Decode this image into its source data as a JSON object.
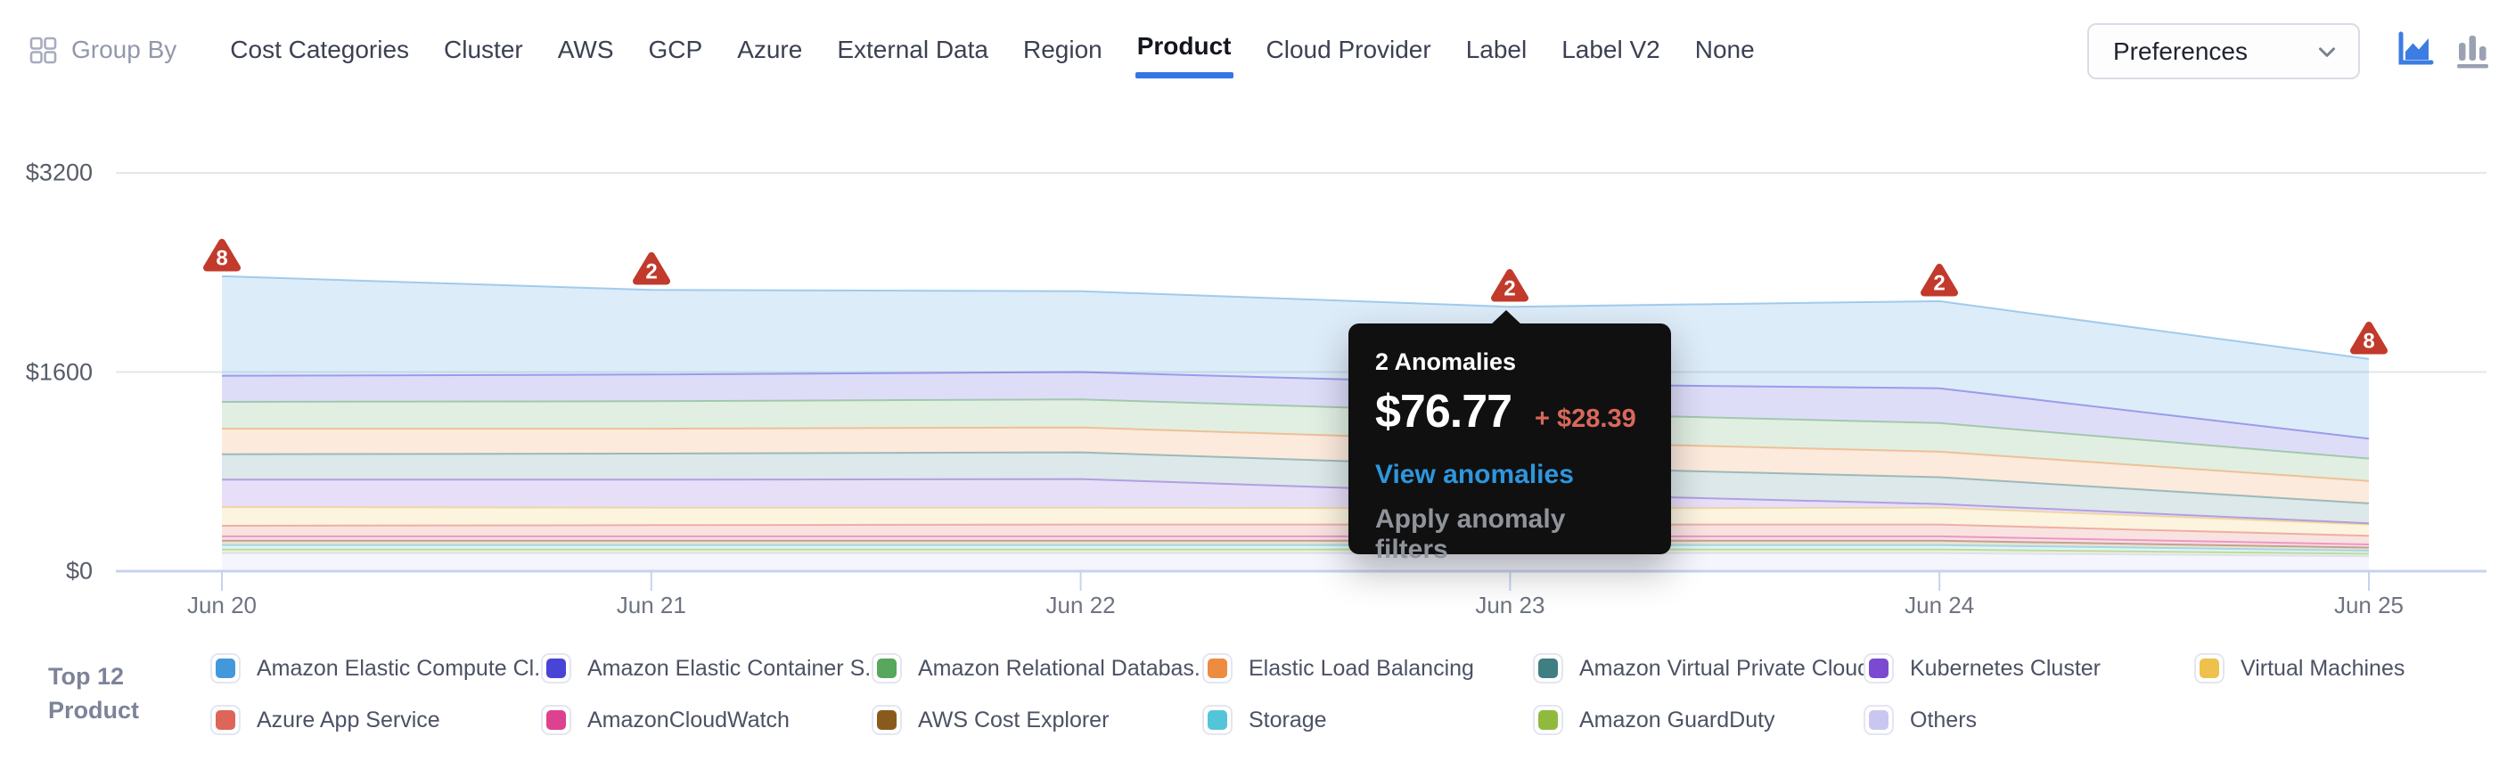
{
  "header": {
    "group_by_label": "Group By",
    "tabs": [
      {
        "label": "Cost Categories",
        "active": false
      },
      {
        "label": "Cluster",
        "active": false
      },
      {
        "label": "AWS",
        "active": false
      },
      {
        "label": "GCP",
        "active": false
      },
      {
        "label": "Azure",
        "active": false
      },
      {
        "label": "External Data",
        "active": false
      },
      {
        "label": "Region",
        "active": false
      },
      {
        "label": "Product",
        "active": true
      },
      {
        "label": "Cloud Provider",
        "active": false
      },
      {
        "label": "Label",
        "active": false
      },
      {
        "label": "Label V2",
        "active": false
      },
      {
        "label": "None",
        "active": false
      }
    ],
    "preferences_label": "Preferences",
    "chart_type_icons": [
      {
        "name": "area-chart",
        "active": true,
        "color": "#3b7de2"
      },
      {
        "name": "bar-chart",
        "active": false,
        "color": "#9aa1b2"
      }
    ]
  },
  "chart_data": {
    "type": "area",
    "stacked": true,
    "grid": true,
    "legend_position": "bottom",
    "categories": [
      "Jun 20",
      "Jun 21",
      "Jun 22",
      "Jun 23",
      "Jun 24",
      "Jun 25"
    ],
    "ylim": [
      0,
      3200
    ],
    "yticks": [
      {
        "label": "$0",
        "value": 0
      },
      {
        "label": "$1600",
        "value": 1600
      },
      {
        "label": "$3200",
        "value": 3200
      }
    ],
    "series": [
      {
        "name": "Amazon Elastic Compute Cl...",
        "color": "#4398db",
        "values": [
          800,
          680,
          650,
          620,
          700,
          640
        ]
      },
      {
        "name": "Amazon Elastic Container S...",
        "color": "#4845d6",
        "values": [
          210,
          215,
          220,
          230,
          280,
          160
        ]
      },
      {
        "name": "Amazon Relational Databas...",
        "color": "#57a75c",
        "values": [
          215,
          220,
          225,
          230,
          230,
          180
        ]
      },
      {
        "name": "Elastic Load Balancing",
        "color": "#ed8b41",
        "values": [
          205,
          200,
          200,
          205,
          205,
          180
        ]
      },
      {
        "name": "Amazon Virtual Private Cloud",
        "color": "#3f7e83",
        "values": [
          205,
          210,
          215,
          215,
          215,
          160
        ]
      },
      {
        "name": "Kubernetes Cluster",
        "color": "#7a4bd0",
        "values": [
          220,
          225,
          230,
          120,
          30,
          10
        ]
      },
      {
        "name": "Virtual Machines",
        "color": "#eec14d",
        "values": [
          150,
          140,
          135,
          130,
          135,
          90
        ]
      },
      {
        "name": "Azure App Service",
        "color": "#de655a",
        "values": [
          85,
          90,
          95,
          95,
          95,
          70
        ]
      },
      {
        "name": "AmazonCloudWatch",
        "color": "#de4190",
        "values": [
          35,
          35,
          35,
          35,
          35,
          25
        ]
      },
      {
        "name": "AWS Cost Explorer",
        "color": "#8a5a1c",
        "values": [
          35,
          35,
          35,
          35,
          35,
          25
        ]
      },
      {
        "name": "Storage",
        "color": "#54c4d9",
        "values": [
          35,
          35,
          35,
          35,
          35,
          25
        ]
      },
      {
        "name": "Amazon GuardDuty",
        "color": "#90ba3e",
        "values": [
          30,
          30,
          30,
          30,
          30,
          20
        ]
      },
      {
        "name": "Others",
        "color": "#c9c7f2",
        "values": [
          145,
          145,
          145,
          145,
          145,
          120
        ]
      }
    ],
    "anomalies": [
      {
        "category": "Jun 20",
        "count": 8
      },
      {
        "category": "Jun 21",
        "count": 2
      },
      {
        "category": "Jun 23",
        "count": 2
      },
      {
        "category": "Jun 24",
        "count": 2
      },
      {
        "category": "Jun 25",
        "count": 8
      }
    ],
    "anomaly_marker_color": "#c13a2b"
  },
  "tooltip": {
    "title": "2 Anomalies",
    "amount": "$76.77",
    "delta": "+ $28.39",
    "link_label": "View anomalies",
    "action_label": "Apply anomaly filters",
    "anchor_category": "Jun 23"
  },
  "legend": {
    "title_line1": "Top 12",
    "title_line2": "Product"
  }
}
